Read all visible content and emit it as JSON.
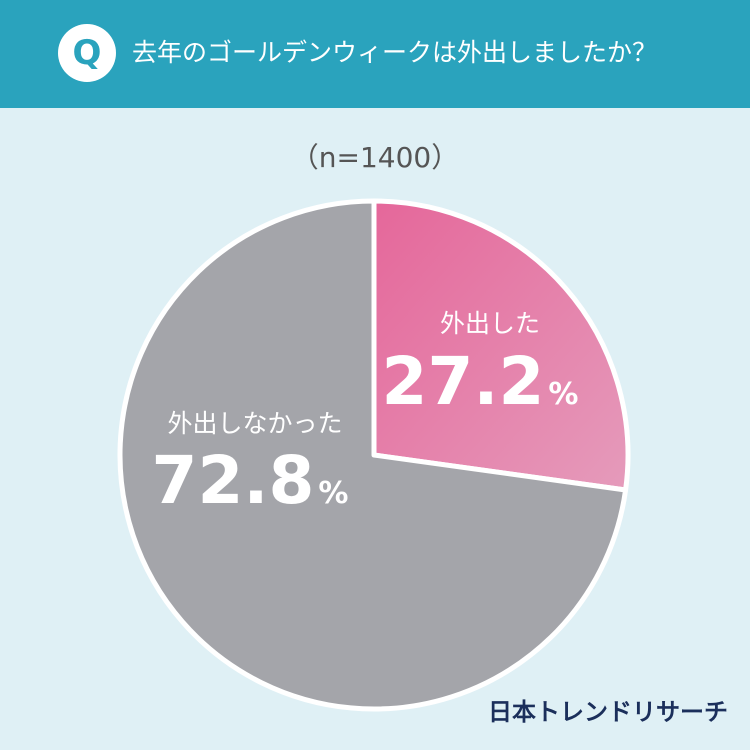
{
  "header": {
    "badge": "Q",
    "question": "去年のゴールデンウィークは外出しましたか？"
  },
  "sample_note": "（n=1400）",
  "chart_data": {
    "type": "pie",
    "title": "去年のゴールデンウィークは外出しましたか？",
    "n": 1400,
    "unit": "%",
    "slices": [
      {
        "label": "外出した",
        "value": 27.2,
        "color": "#e0709e"
      },
      {
        "label": "外出しなかった",
        "value": 72.8,
        "color": "#a4a5aa"
      }
    ]
  },
  "brand": "日本トレンドリサーチ"
}
